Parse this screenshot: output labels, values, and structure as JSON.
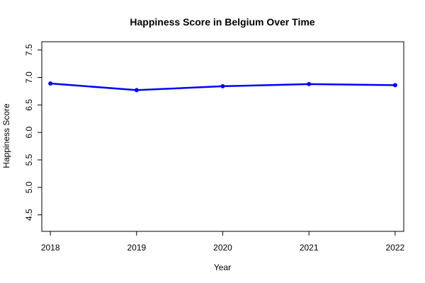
{
  "chart_data": {
    "type": "line",
    "title": "Happiness Score in Belgium Over Time",
    "xlabel": "Year",
    "ylabel": "Happiness Score",
    "x": [
      2018,
      2019,
      2020,
      2021,
      2022
    ],
    "x_tick_labels": [
      "2018",
      "2019",
      "2020",
      "2021",
      "2022"
    ],
    "series": [
      {
        "values": [
          6.89,
          6.77,
          6.84,
          6.88,
          6.86
        ]
      }
    ],
    "y_ticks": [
      4.5,
      5.0,
      5.5,
      6.0,
      6.5,
      7.0,
      7.5
    ],
    "y_tick_labels": [
      "4.5",
      "5.0",
      "5.5",
      "6.0",
      "6.5",
      "7.0",
      "7.5"
    ],
    "ylim": [
      4.2,
      7.65
    ],
    "xlim": [
      2017.9,
      2022.1
    ],
    "grid": false,
    "line_color": "#0000ff",
    "point_color": "#0000ff",
    "markers": "filled-circle"
  }
}
